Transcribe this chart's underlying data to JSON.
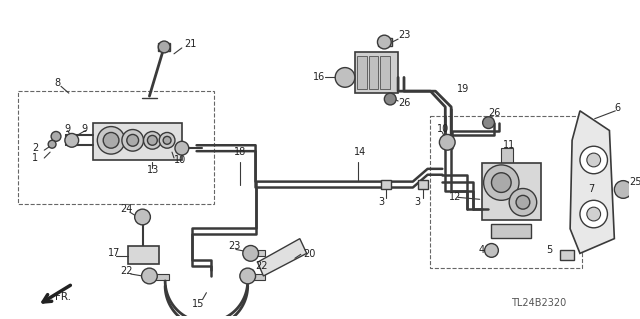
{
  "bg_color": "#ffffff",
  "diagram_code": "TL24B2320",
  "fr_label": "FR.",
  "line_color": "#3a3a3a",
  "text_color": "#222222",
  "fig_width": 6.4,
  "fig_height": 3.19,
  "dpi": 100
}
